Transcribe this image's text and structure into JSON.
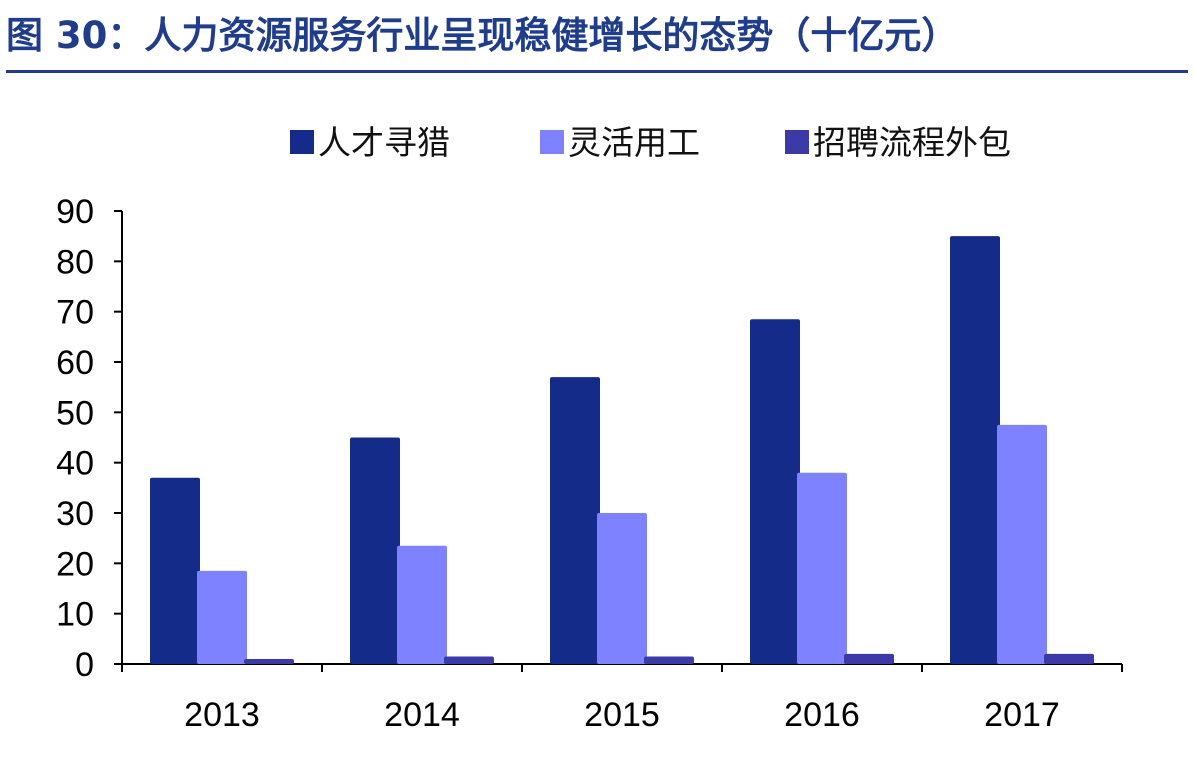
{
  "title": "图 30：人力资源服务行业呈现稳健增长的态势（十亿元）",
  "chart_data": {
    "type": "bar",
    "categories": [
      "2013",
      "2014",
      "2015",
      "2016",
      "2017"
    ],
    "series": [
      {
        "name": "人才寻猎",
        "color": "#152b8a",
        "values": [
          37,
          45,
          57,
          68.5,
          85
        ]
      },
      {
        "name": "灵活用工",
        "color": "#7f82ff",
        "values": [
          18.5,
          23.5,
          30,
          38,
          47.5
        ]
      },
      {
        "name": "招聘流程外包",
        "color": "#3b3aa6",
        "values": [
          1,
          1.5,
          1.5,
          2,
          2
        ]
      }
    ],
    "ylim": [
      0,
      90
    ],
    "yticks": [
      "0",
      "10",
      "20",
      "30",
      "40",
      "50",
      "60",
      "70",
      "80",
      "90"
    ],
    "xlabel": "",
    "ylabel": "",
    "legend_position": "top",
    "grid": false
  }
}
